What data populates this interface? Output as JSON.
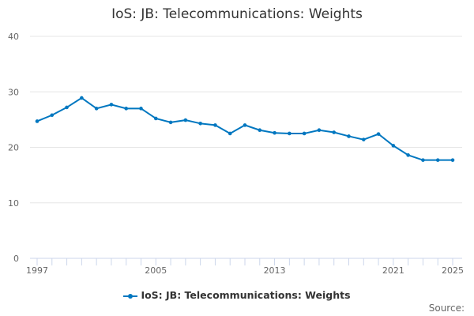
{
  "chart_data": {
    "type": "line",
    "title": "IoS: JB: Telecommunications: Weights",
    "xlabel": "",
    "ylabel": "",
    "ylim": [
      0,
      40
    ],
    "yticks": [
      0,
      10,
      20,
      30,
      40
    ],
    "xticks": [
      1997,
      2005,
      2013,
      2021,
      2025
    ],
    "grid": true,
    "legend_position": "bottom",
    "x": [
      1997,
      1998,
      1999,
      2000,
      2001,
      2002,
      2003,
      2004,
      2005,
      2006,
      2007,
      2008,
      2009,
      2010,
      2011,
      2012,
      2013,
      2014,
      2015,
      2016,
      2017,
      2018,
      2019,
      2020,
      2021,
      2022,
      2023,
      2024,
      2025
    ],
    "series": [
      {
        "name": "IoS: JB: Telecommunications: Weights",
        "color": "#0077c0",
        "values": [
          24.7,
          25.8,
          27.2,
          28.9,
          27.0,
          27.7,
          27.0,
          27.0,
          25.2,
          24.5,
          24.9,
          24.3,
          24.0,
          22.5,
          24.0,
          23.1,
          22.6,
          22.5,
          22.5,
          23.1,
          22.7,
          22.0,
          21.4,
          22.4,
          20.3,
          18.6,
          17.7,
          17.7,
          17.7
        ]
      }
    ]
  },
  "source_label": "Source:"
}
